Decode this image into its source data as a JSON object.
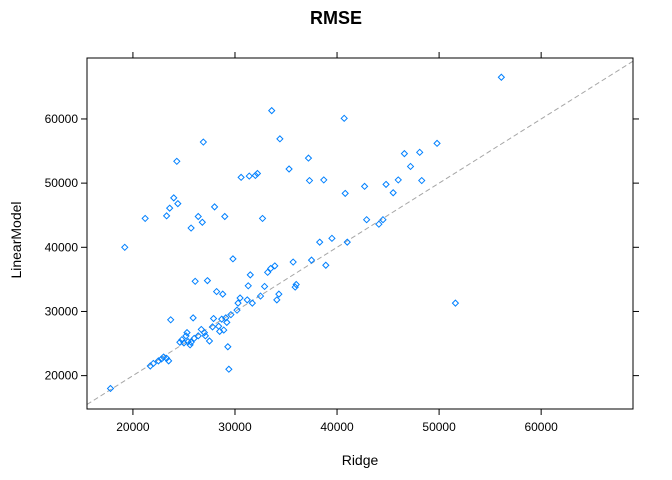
{
  "chart_data": {
    "type": "scatter",
    "title": "RMSE",
    "xlabel": "Ridge",
    "ylabel": "LinearModel",
    "xlim": [
      15500,
      69000
    ],
    "ylim": [
      14800,
      69500
    ],
    "x_ticks": [
      20000,
      30000,
      40000,
      50000,
      60000
    ],
    "y_ticks": [
      20000,
      30000,
      40000,
      50000,
      60000
    ],
    "x_tick_labels": [
      "20000",
      "30000",
      "40000",
      "50000",
      "60000"
    ],
    "y_tick_labels": [
      "20000",
      "30000",
      "40000",
      "50000",
      "60000"
    ],
    "reference_line": "y = x",
    "grid": false,
    "marker_color": "#0080ff",
    "reference_line_color": "#a6a6a6",
    "points": [
      [
        17800,
        18000
      ],
      [
        19200,
        40000
      ],
      [
        21200,
        44500
      ],
      [
        21700,
        21500
      ],
      [
        22000,
        21900
      ],
      [
        22500,
        22300
      ],
      [
        22800,
        22600
      ],
      [
        23000,
        22900
      ],
      [
        23300,
        22700
      ],
      [
        23500,
        22300
      ],
      [
        23300,
        44900
      ],
      [
        23600,
        46100
      ],
      [
        23700,
        28700
      ],
      [
        24000,
        47700
      ],
      [
        24300,
        53400
      ],
      [
        24400,
        46800
      ],
      [
        24600,
        25200
      ],
      [
        24800,
        25600
      ],
      [
        25000,
        25100
      ],
      [
        25200,
        26200
      ],
      [
        25400,
        25300
      ],
      [
        25300,
        26700
      ],
      [
        25600,
        24800
      ],
      [
        25700,
        25200
      ],
      [
        25700,
        43000
      ],
      [
        25900,
        29000
      ],
      [
        26000,
        25800
      ],
      [
        26100,
        34700
      ],
      [
        26400,
        26200
      ],
      [
        26400,
        44800
      ],
      [
        26700,
        27200
      ],
      [
        26800,
        43900
      ],
      [
        26900,
        56400
      ],
      [
        27000,
        26700
      ],
      [
        27100,
        26200
      ],
      [
        27300,
        34800
      ],
      [
        27500,
        25400
      ],
      [
        27800,
        27600
      ],
      [
        27900,
        28900
      ],
      [
        28000,
        46300
      ],
      [
        28200,
        33100
      ],
      [
        28400,
        27700
      ],
      [
        28500,
        26900
      ],
      [
        28700,
        28800
      ],
      [
        28800,
        32700
      ],
      [
        28900,
        27100
      ],
      [
        29000,
        44800
      ],
      [
        29100,
        29000
      ],
      [
        29200,
        28300
      ],
      [
        29300,
        24500
      ],
      [
        29400,
        21000
      ],
      [
        29600,
        29500
      ],
      [
        29800,
        38200
      ],
      [
        30200,
        30200
      ],
      [
        30300,
        31300
      ],
      [
        30500,
        32100
      ],
      [
        30600,
        50900
      ],
      [
        31200,
        31800
      ],
      [
        31300,
        34000
      ],
      [
        31400,
        51100
      ],
      [
        31500,
        35700
      ],
      [
        31700,
        31300
      ],
      [
        32000,
        51200
      ],
      [
        32200,
        51500
      ],
      [
        32500,
        32400
      ],
      [
        32700,
        44500
      ],
      [
        32900,
        33900
      ],
      [
        33200,
        36100
      ],
      [
        33500,
        36700
      ],
      [
        33600,
        61300
      ],
      [
        33900,
        37100
      ],
      [
        34100,
        31800
      ],
      [
        34300,
        32700
      ],
      [
        34400,
        56900
      ],
      [
        35300,
        52200
      ],
      [
        35700,
        37700
      ],
      [
        35900,
        33800
      ],
      [
        36000,
        34200
      ],
      [
        37200,
        53900
      ],
      [
        37300,
        50400
      ],
      [
        37500,
        38000
      ],
      [
        38300,
        40800
      ],
      [
        38700,
        50500
      ],
      [
        38900,
        37200
      ],
      [
        39500,
        41400
      ],
      [
        40700,
        60100
      ],
      [
        40800,
        48400
      ],
      [
        41000,
        40800
      ],
      [
        42700,
        49500
      ],
      [
        42900,
        44300
      ],
      [
        44100,
        43600
      ],
      [
        44500,
        44300
      ],
      [
        44800,
        49800
      ],
      [
        45500,
        48500
      ],
      [
        46000,
        50500
      ],
      [
        46600,
        54600
      ],
      [
        47200,
        52600
      ],
      [
        48100,
        54800
      ],
      [
        48300,
        50400
      ],
      [
        49800,
        56200
      ],
      [
        51600,
        31300
      ],
      [
        56100,
        66500
      ]
    ]
  }
}
